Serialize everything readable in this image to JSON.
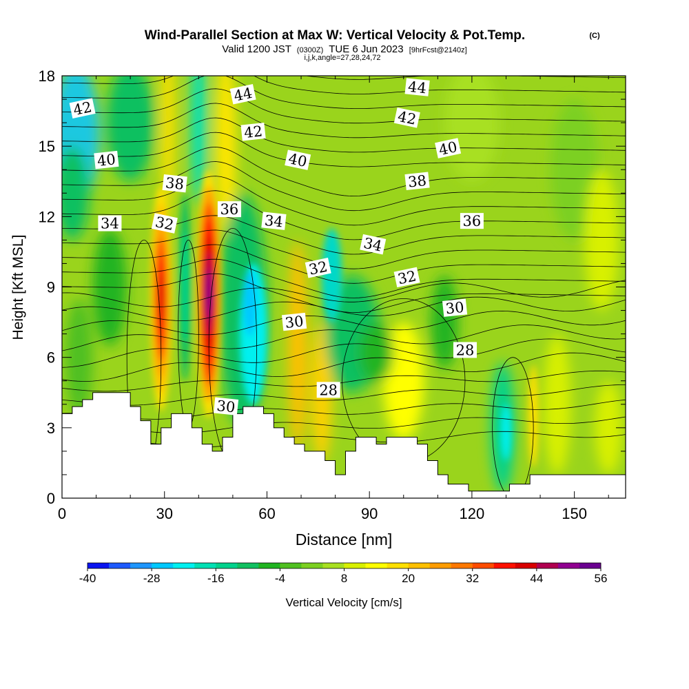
{
  "chart_data": {
    "type": "heatmap",
    "title": "Wind-Parallel Section at Max W: Vertical Velocity & Pot.Temp.",
    "copyright": "(C)",
    "subtitle_main": "Valid 1200 JST",
    "subtitle_utc": "(0300Z)",
    "subtitle_date": "TUE 6 Jun 2023",
    "subtitle_fcst": "[9hrFcst@2140z]",
    "subtitle_params": "i,j,k,angle=27,28,24,72",
    "xlabel": "Distance [nm]",
    "ylabel": "Height [Kft MSL]",
    "xlim": [
      0,
      165
    ],
    "ylim": [
      0,
      18
    ],
    "x_ticks": [
      "0",
      "30",
      "60",
      "90",
      "120",
      "150"
    ],
    "y_ticks": [
      "0",
      "3",
      "6",
      "9",
      "12",
      "15",
      "18"
    ],
    "colorbar_label": "Vertical Velocity [cm/s]",
    "colorbar_ticks": [
      "-40",
      "-28",
      "-16",
      "-4",
      "8",
      "20",
      "32",
      "44",
      "56"
    ],
    "colorbar_colors": [
      "#0a14f0",
      "#1e5aff",
      "#1e96ff",
      "#00c8ff",
      "#00f0f0",
      "#00e0b4",
      "#00d28c",
      "#10c060",
      "#20b420",
      "#50c020",
      "#7cd020",
      "#a8e020",
      "#d8f000",
      "#ffff00",
      "#ffe000",
      "#ffc000",
      "#ff9c00",
      "#ff7800",
      "#ff4c00",
      "#ff1000",
      "#d80000",
      "#b00050",
      "#900090",
      "#6a0090"
    ],
    "theta_contour_labels": [
      {
        "value": "42",
        "x": 6,
        "y": 16.6
      },
      {
        "value": "40",
        "x": 13,
        "y": 14.4
      },
      {
        "value": "34",
        "x": 14,
        "y": 11.7
      },
      {
        "value": "38",
        "x": 33,
        "y": 13.4
      },
      {
        "value": "32",
        "x": 30,
        "y": 11.7
      },
      {
        "value": "44",
        "x": 53,
        "y": 17.2
      },
      {
        "value": "42",
        "x": 56,
        "y": 15.6
      },
      {
        "value": "36",
        "x": 49,
        "y": 12.3
      },
      {
        "value": "34",
        "x": 62,
        "y": 11.8
      },
      {
        "value": "40",
        "x": 69,
        "y": 14.4
      },
      {
        "value": "32",
        "x": 75,
        "y": 9.8
      },
      {
        "value": "30",
        "x": 68,
        "y": 7.5
      },
      {
        "value": "28",
        "x": 78,
        "y": 4.6
      },
      {
        "value": "30",
        "x": 48,
        "y": 3.9
      },
      {
        "value": "34",
        "x": 91,
        "y": 10.8
      },
      {
        "value": "32",
        "x": 101,
        "y": 9.4
      },
      {
        "value": "30",
        "x": 115,
        "y": 8.1
      },
      {
        "value": "28",
        "x": 118,
        "y": 6.3
      },
      {
        "value": "44",
        "x": 104,
        "y": 17.5
      },
      {
        "value": "42",
        "x": 101,
        "y": 16.2
      },
      {
        "value": "40",
        "x": 113,
        "y": 14.9
      },
      {
        "value": "38",
        "x": 104,
        "y": 13.5
      },
      {
        "value": "36",
        "x": 120,
        "y": 11.8
      }
    ],
    "terrain_profile": [
      {
        "x": 0,
        "h": 3.6
      },
      {
        "x": 3,
        "h": 3.9
      },
      {
        "x": 6,
        "h": 4.2
      },
      {
        "x": 9,
        "h": 4.5
      },
      {
        "x": 20,
        "h": 3.9
      },
      {
        "x": 23,
        "h": 3.3
      },
      {
        "x": 26,
        "h": 2.3
      },
      {
        "x": 29,
        "h": 3.0
      },
      {
        "x": 32,
        "h": 3.6
      },
      {
        "x": 38,
        "h": 3.0
      },
      {
        "x": 41,
        "h": 2.3
      },
      {
        "x": 44,
        "h": 2.0
      },
      {
        "x": 47,
        "h": 2.6
      },
      {
        "x": 50,
        "h": 3.6
      },
      {
        "x": 53,
        "h": 3.9
      },
      {
        "x": 59,
        "h": 3.6
      },
      {
        "x": 62,
        "h": 3.0
      },
      {
        "x": 65,
        "h": 2.6
      },
      {
        "x": 68,
        "h": 2.3
      },
      {
        "x": 71,
        "h": 2.0
      },
      {
        "x": 77,
        "h": 1.6
      },
      {
        "x": 80,
        "h": 1.0
      },
      {
        "x": 83,
        "h": 2.0
      },
      {
        "x": 86,
        "h": 2.6
      },
      {
        "x": 92,
        "h": 2.3
      },
      {
        "x": 95,
        "h": 2.6
      },
      {
        "x": 104,
        "h": 2.3
      },
      {
        "x": 107,
        "h": 1.6
      },
      {
        "x": 110,
        "h": 1.0
      },
      {
        "x": 113,
        "h": 0.6
      },
      {
        "x": 119,
        "h": 0.3
      },
      {
        "x": 131,
        "h": 0.6
      },
      {
        "x": 137,
        "h": 1.0
      },
      {
        "x": 165,
        "h": 1.0
      }
    ]
  }
}
